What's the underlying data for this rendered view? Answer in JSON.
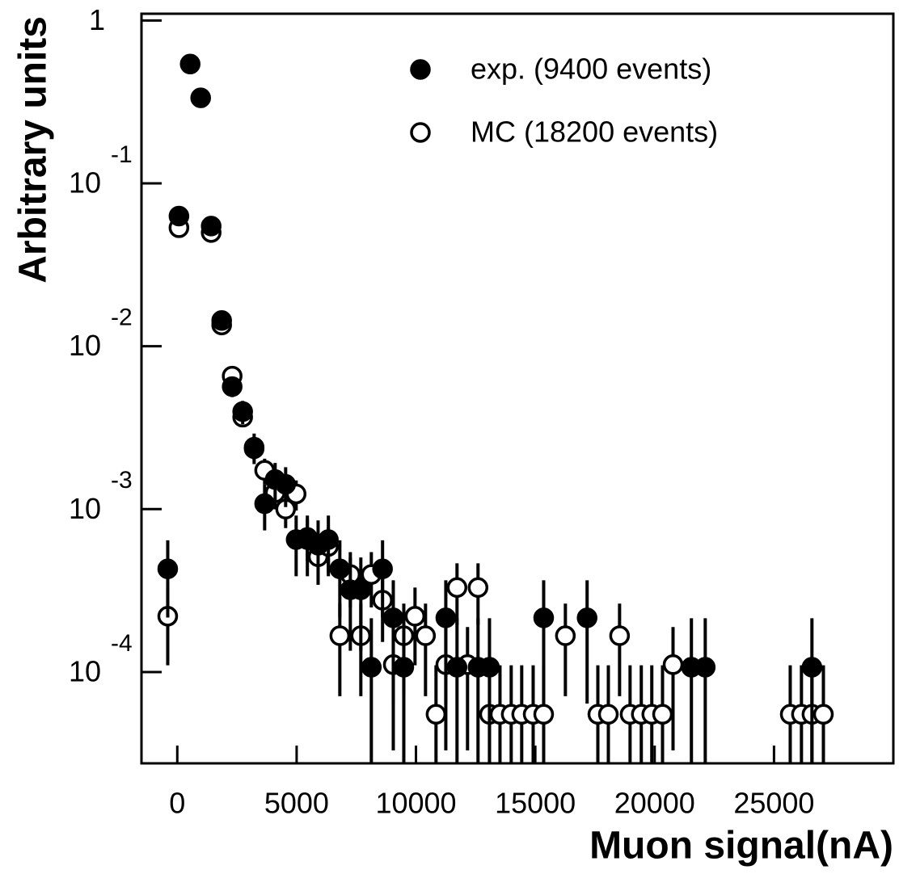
{
  "chart_data": {
    "type": "scatter",
    "log_y": true,
    "x_label": "Muon signal(nA)",
    "y_label": "Arbitrary units",
    "xlim": [
      -1500,
      30000
    ],
    "xticks": [
      0,
      5000,
      10000,
      15000,
      20000,
      25000
    ],
    "ylim": [
      2.75e-05,
      1.1
    ],
    "yticks": [
      1,
      {
        "value": 0.1,
        "label": "10",
        "exponent": "-1"
      },
      {
        "value": 0.01,
        "label": "10",
        "exponent": "-2"
      },
      {
        "value": 0.001,
        "label": "10",
        "exponent": "-3"
      },
      {
        "value": 0.0001,
        "label": "10",
        "exponent": "-4"
      }
    ],
    "legend": "top-right",
    "series": [
      {
        "name": "exp. (9400 events)",
        "color": "#000000",
        "marker": "filled",
        "x": [
          -400,
          70,
          540,
          980,
          1420,
          1860,
          2300,
          2740,
          3220,
          3660,
          4100,
          4540,
          4980,
          5450,
          5900,
          6330,
          6810,
          7250,
          7690,
          8130,
          8600,
          9050,
          9490,
          11250,
          11720,
          12600,
          13080,
          15350,
          17170,
          21540,
          22120,
          26590
        ],
        "values": [
          0.00043,
          0.063,
          0.54,
          0.335,
          0.0547,
          0.0144,
          0.00565,
          0.00397,
          0.0024,
          0.00108,
          0.00152,
          0.00142,
          0.00065,
          0.00065,
          0.0006,
          0.00065,
          0.00043,
          0.00032,
          0.00032,
          0.000107,
          0.00043,
          0.000215,
          0.000107,
          0.000215,
          0.000107,
          0.000107,
          0.000107,
          0.000215,
          0.000215,
          0.000107,
          0.000107,
          0.000107
        ],
        "errors": [
          0.000214,
          0.0026,
          0.0076,
          0.006,
          0.0024,
          0.00124,
          0.00078,
          0.00065,
          0.00051,
          0.00034,
          0.0004,
          0.00039,
          0.000263,
          0.000263,
          0.000253,
          0.000263,
          0.000214,
          0.000185,
          0.000185,
          0.000107,
          0.000214,
          0.000151,
          0.000107,
          0.000151,
          0.000107,
          0.000107,
          0.000107,
          0.000151,
          0.000151,
          0.000107,
          0.000107,
          0.000107
        ]
      },
      {
        "name": "MC (18200 events)",
        "color": "#000000",
        "marker": "open",
        "x": [
          -400,
          70,
          1420,
          1860,
          2300,
          2740,
          3220,
          3660,
          4100,
          4540,
          4980,
          5450,
          5900,
          6330,
          6810,
          7250,
          7690,
          8130,
          8600,
          9050,
          9490,
          9960,
          10400,
          10840,
          11250,
          11720,
          12160,
          12600,
          13080,
          13520,
          13990,
          14430,
          14910,
          15350,
          16260,
          17620,
          18060,
          18530,
          18970,
          19440,
          19880,
          20330,
          20770,
          25680,
          26150,
          26590,
          27070
        ],
        "values": [
          0.00022,
          0.0534,
          0.0499,
          0.0135,
          0.00656,
          0.00367,
          0.00235,
          0.00173,
          0.00126,
          0.001,
          0.00124,
          0.00067,
          0.00051,
          0.00059,
          0.000167,
          0.000397,
          0.000167,
          0.000397,
          0.000276,
          0.000111,
          0.000167,
          0.00022,
          0.000167,
          5.5e-05,
          0.000111,
          0.00033,
          0.000111,
          0.00033,
          5.5e-05,
          5.5e-05,
          5.5e-05,
          5.5e-05,
          5.5e-05,
          5.5e-05,
          0.000167,
          5.5e-05,
          5.5e-05,
          0.000167,
          5.5e-05,
          5.5e-05,
          5.5e-05,
          5.5e-05,
          0.000111,
          5.5e-05,
          5.5e-05,
          5.5e-05,
          5.5e-05
        ],
        "errors": [
          0.00011,
          0.00171,
          0.00166,
          0.00086,
          0.0006,
          0.00045,
          0.00036,
          0.00031,
          0.000263,
          0.000235,
          0.00026,
          0.000192,
          0.000167,
          0.00018,
          9.6e-05,
          0.000148,
          9.6e-05,
          0.000148,
          0.000123,
          7.8e-05,
          9.6e-05,
          0.00011,
          9.6e-05,
          5.5e-05,
          7.8e-05,
          0.000135,
          7.8e-05,
          0.000135,
          5.5e-05,
          5.5e-05,
          5.5e-05,
          5.5e-05,
          5.5e-05,
          5.5e-05,
          9.6e-05,
          5.5e-05,
          5.5e-05,
          9.6e-05,
          5.5e-05,
          5.5e-05,
          5.5e-05,
          5.5e-05,
          7.8e-05,
          5.5e-05,
          5.5e-05,
          5.5e-05,
          5.5e-05
        ]
      }
    ]
  }
}
